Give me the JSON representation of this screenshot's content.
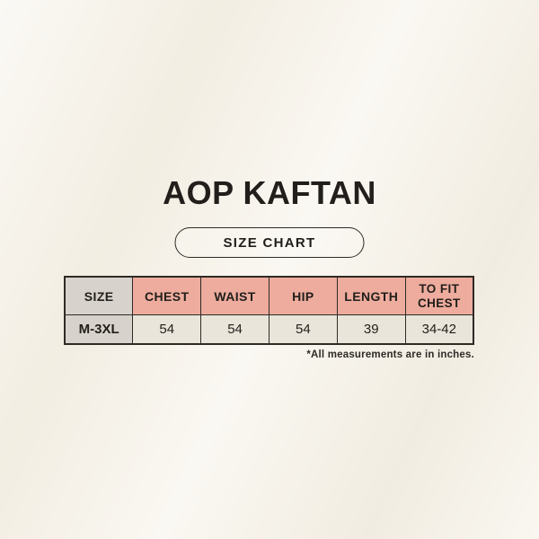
{
  "title": "AOP KAFTAN",
  "size_chart_label": "SIZE CHART",
  "footnote": "*All measurements are in inches.",
  "table": {
    "columns": [
      "SIZE",
      "CHEST",
      "WAIST",
      "HIP",
      "LENGTH",
      "TO FIT CHEST"
    ],
    "rows": [
      {
        "size": "M-3XL",
        "values": [
          "54",
          "54",
          "54",
          "39",
          "34-42"
        ]
      }
    ]
  },
  "colors": {
    "background": "#f6f2e8",
    "header_salmon": "#edac9d",
    "header_gray": "#d7d3cc",
    "row_cream": "#eae5da",
    "row_gray": "#d7d3cc",
    "border": "#2e2a26",
    "text": "#211e1b"
  }
}
